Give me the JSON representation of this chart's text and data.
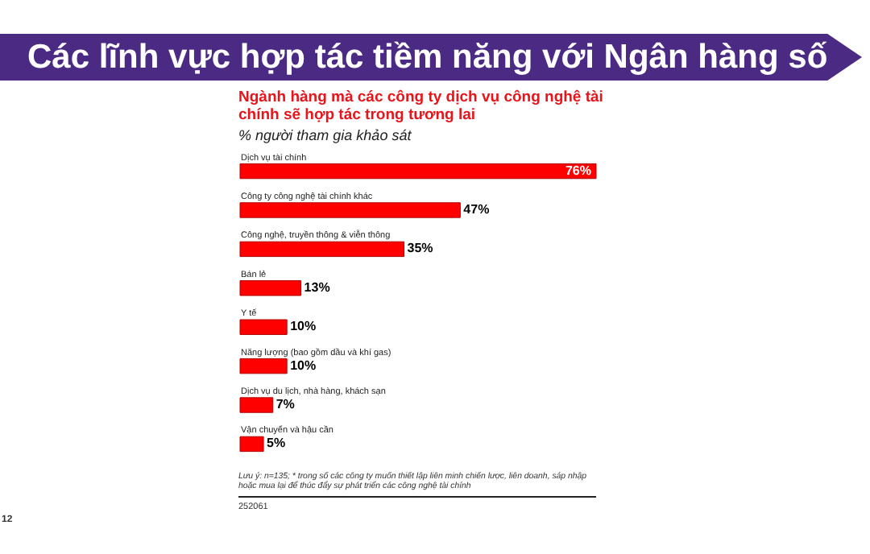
{
  "chart_data": {
    "type": "bar",
    "orientation": "horizontal",
    "title": "Các lĩnh vực hợp tác tiềm năng với Ngân hàng số",
    "subtitle": "Ngành hàng mà các công ty dịch vụ công nghệ tài chính sẽ hợp tác trong tương lai",
    "categories": [
      "Dịch vụ tài chính",
      "Công ty công nghệ tài chính khác",
      "Công nghệ, truyền thông & viễn thông",
      "Bán lẻ",
      "Y tế",
      "Năng lượng (bao gồm dầu và khí gas)",
      "Dịch vụ du lịch, nhà hàng, khách sạn",
      "Vận chuyển và hậu cần"
    ],
    "values": [
      76,
      47,
      35,
      13,
      10,
      10,
      7,
      5
    ],
    "value_labels": [
      "76%",
      "47%",
      "35%",
      "13%",
      "10%",
      "10%",
      "7%",
      "5%"
    ],
    "color": "#ff0000",
    "annotations": [
      "% người tham gia khảo sát",
      "Lưu ý: n=135; * trong số các công ty muốn thiết lập liên minh chiến lược, liên doanh, sáp nhập hoặc mua lại để thúc đẩy sự phát triển các công nghệ tài chính",
      "252061",
      "12"
    ]
  }
}
